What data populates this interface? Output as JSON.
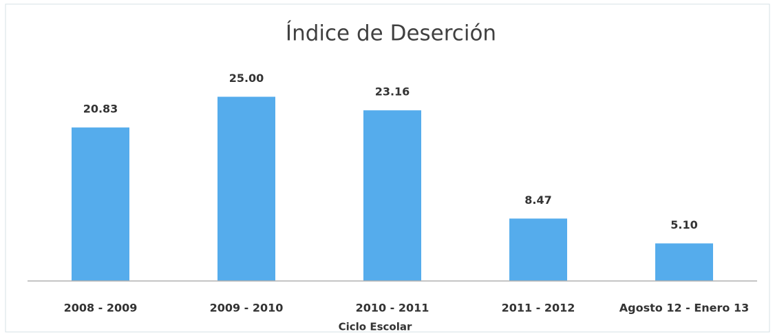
{
  "chart_data": {
    "type": "bar",
    "title": "Índice de Deserción",
    "x_label": "Ciclo Escolar",
    "categories": [
      "2008 - 2009",
      "2009 - 2010",
      "2010 - 2011",
      "2011 - 2012",
      "Agosto 12 - Enero 13"
    ],
    "values": [
      20.83,
      25.0,
      23.16,
      8.47,
      5.1
    ],
    "value_labels": [
      "20.83",
      "25.00",
      "23.16",
      "8.47",
      "5.10"
    ],
    "color": "#55acec",
    "ylim": [
      0,
      30
    ]
  }
}
